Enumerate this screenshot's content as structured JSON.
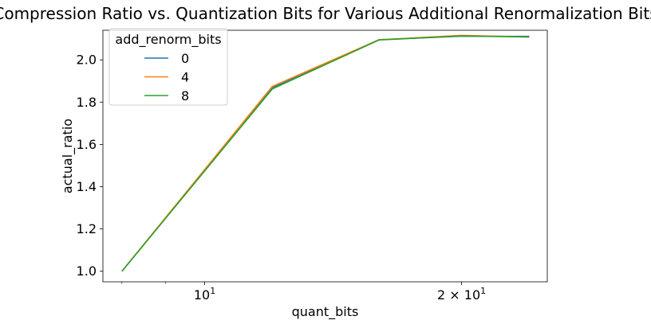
{
  "chart_data": {
    "type": "line",
    "title": "Compression Ratio vs. Quantization Bits for Various Additional Renormalization Bits",
    "xlabel": "quant_bits",
    "ylabel": "actual_ratio",
    "xscale": "log",
    "xlim": [
      7.6,
      25.2
    ],
    "ylim": [
      0.95,
      2.14
    ],
    "xticks": [
      {
        "value": 10,
        "base": "10",
        "exp": "1",
        "mult": ""
      },
      {
        "value": 20,
        "base": "10",
        "exp": "1",
        "mult": "2 × "
      }
    ],
    "x_minor_ticks": [
      8,
      9
    ],
    "yticks": [
      1.0,
      1.2,
      1.4,
      1.6,
      1.8,
      2.0
    ],
    "ytick_labels": [
      "1.0",
      "1.2",
      "1.4",
      "1.6",
      "1.8",
      "2.0"
    ],
    "grid": false,
    "legend": {
      "title": "add_renorm_bits",
      "position": "top-left"
    },
    "x": [
      8,
      12,
      16,
      20,
      24
    ],
    "series": [
      {
        "name": "0",
        "color": "#1f77b4",
        "values": [
          1.0,
          1.868,
          2.095,
          2.112,
          2.111
        ]
      },
      {
        "name": "4",
        "color": "#ff7f0e",
        "values": [
          1.0,
          1.874,
          2.095,
          2.116,
          2.108
        ]
      },
      {
        "name": "8",
        "color": "#2ca02c",
        "values": [
          1.0,
          1.862,
          2.094,
          2.113,
          2.108
        ]
      }
    ]
  }
}
